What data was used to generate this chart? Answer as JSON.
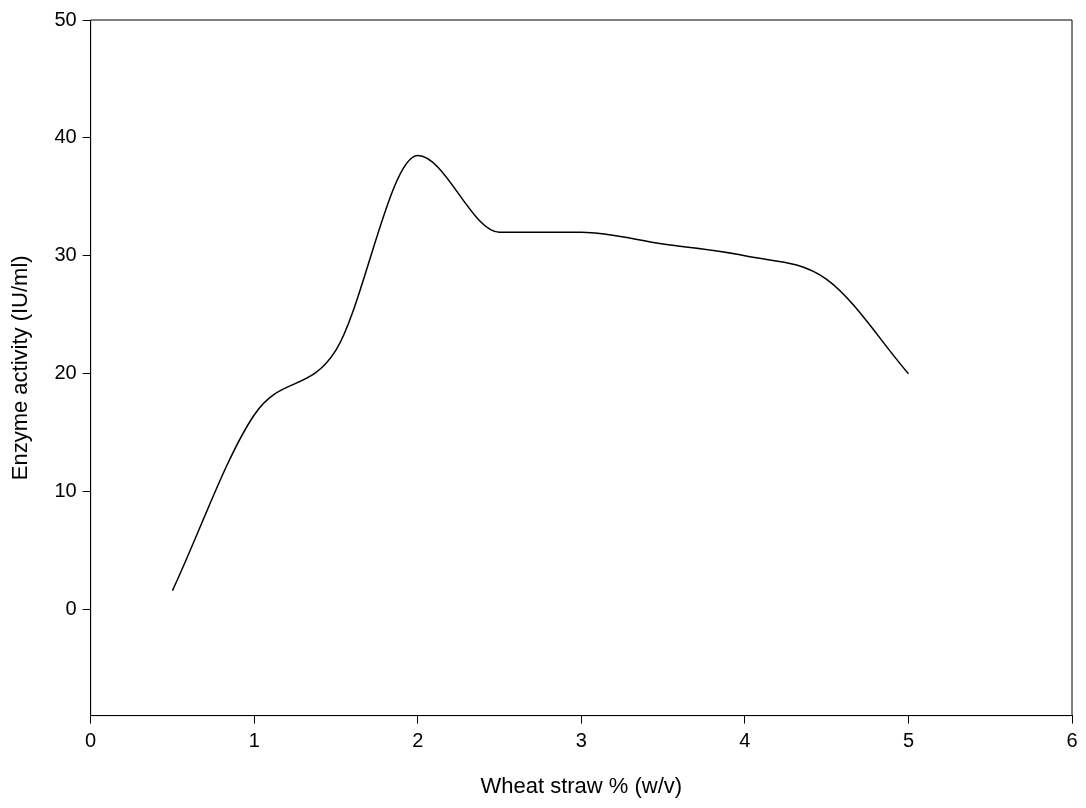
{
  "chart_data": {
    "type": "line",
    "xlabel": "Wheat straw % (w/v)",
    "ylabel": "Enzyme activity (IU/ml)",
    "x": [
      0.5,
      1,
      1.5,
      2,
      2.5,
      3,
      3.5,
      4,
      4.5,
      5
    ],
    "series": [
      {
        "color": "#000000",
        "values": [
          1.6,
          16.5,
          22,
          38.5,
          32,
          32,
          31,
          30,
          28,
          20
        ]
      }
    ],
    "xlim": [
      0,
      6
    ],
    "xticks": [
      0,
      1,
      2,
      3,
      4,
      5,
      6
    ],
    "ylim": [
      -9,
      50
    ],
    "yticks": [
      0,
      10,
      20,
      30,
      40,
      50
    ],
    "grid": false,
    "legend": false,
    "marker": "none",
    "line_style": "solid"
  }
}
